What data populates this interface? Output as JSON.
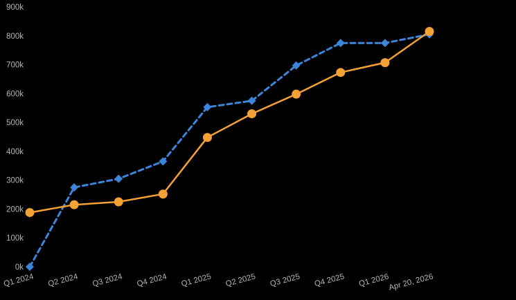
{
  "chart_data": {
    "type": "line",
    "title": "",
    "xlabel": "",
    "ylabel": "",
    "categories": [
      "Q1 2024",
      "Q2 2024",
      "Q3 2024",
      "Q4 2024",
      "Q1 2025",
      "Q2 2025",
      "Q3 2025",
      "Q4 2025",
      "Q1 2026",
      "Apr 20, 2026"
    ],
    "ylim": [
      0,
      900000
    ],
    "yticks": [
      {
        "value": 0,
        "label": "0k"
      },
      {
        "value": 100000,
        "label": "100k"
      },
      {
        "value": 200000,
        "label": "200k"
      },
      {
        "value": 300000,
        "label": "300k"
      },
      {
        "value": 400000,
        "label": "400k"
      },
      {
        "value": 500000,
        "label": "500k"
      },
      {
        "value": 600000,
        "label": "600k"
      },
      {
        "value": 700000,
        "label": "700k"
      },
      {
        "value": 800000,
        "label": "800k"
      },
      {
        "value": 900000,
        "label": "900k"
      }
    ],
    "grid": false,
    "legend": "none",
    "series": [
      {
        "values": [
          0,
          275000,
          305000,
          365000,
          553000,
          575000,
          697000,
          775000,
          775000,
          805000
        ],
        "color": "#3d85d8",
        "line_style": "dashed",
        "marker": "diamond"
      },
      {
        "values": [
          188000,
          215000,
          225000,
          252000,
          448000,
          530000,
          598000,
          673000,
          707000,
          815000
        ],
        "color": "#f4a236",
        "line_style": "solid",
        "marker": "circle"
      }
    ]
  }
}
